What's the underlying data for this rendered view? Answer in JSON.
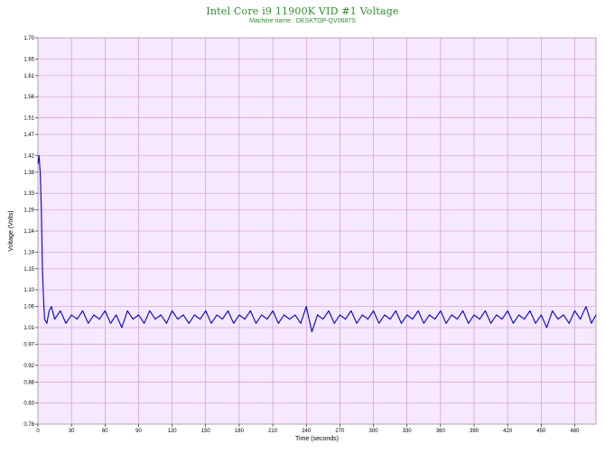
{
  "chart_data": {
    "type": "line",
    "title": "Intel Core i9 11900K VID #1 Voltage",
    "subtitle": "Machine name : DESKTOP-QV0687S",
    "xlabel": "Time (seconds)",
    "ylabel": "Voltage (Volts)",
    "xlim": [
      0,
      499
    ],
    "ylim": [
      0.78,
      1.7
    ],
    "x_ticks": [
      0,
      30,
      60,
      90,
      120,
      150,
      180,
      210,
      240,
      270,
      300,
      330,
      360,
      390,
      420,
      450,
      480
    ],
    "y_ticks": [
      "0.78",
      "0.83",
      "0.88",
      "0.92",
      "0.97",
      "1.01",
      "1.06",
      "1.10",
      "1.15",
      "1.19",
      "1.24",
      "1.29",
      "1.33",
      "1.38",
      "1.42",
      "1.47",
      "1.51",
      "1.56",
      "1.61",
      "1.65",
      "1.70"
    ],
    "grid": true,
    "series": [
      {
        "color": "#0000c0",
        "x": [
          0,
          1,
          2,
          3,
          4,
          5,
          6,
          8,
          10,
          12,
          15,
          20,
          25,
          30,
          35,
          40,
          45,
          50,
          55,
          60,
          65,
          70,
          75,
          80,
          85,
          90,
          95,
          100,
          105,
          110,
          115,
          120,
          125,
          130,
          135,
          140,
          145,
          150,
          155,
          160,
          165,
          170,
          175,
          180,
          185,
          190,
          195,
          200,
          205,
          210,
          215,
          220,
          225,
          230,
          235,
          240,
          245,
          250,
          255,
          260,
          265,
          270,
          275,
          280,
          285,
          290,
          295,
          300,
          305,
          310,
          315,
          320,
          325,
          330,
          335,
          340,
          345,
          350,
          355,
          360,
          365,
          370,
          375,
          380,
          385,
          390,
          395,
          400,
          405,
          410,
          415,
          420,
          425,
          430,
          435,
          440,
          445,
          450,
          455,
          460,
          465,
          470,
          475,
          480,
          485,
          490,
          495,
          499
        ],
        "y": [
          1.4,
          1.42,
          1.38,
          1.3,
          1.15,
          1.08,
          1.03,
          1.02,
          1.05,
          1.06,
          1.03,
          1.05,
          1.02,
          1.04,
          1.03,
          1.05,
          1.02,
          1.04,
          1.03,
          1.05,
          1.02,
          1.04,
          1.01,
          1.05,
          1.03,
          1.04,
          1.02,
          1.05,
          1.03,
          1.04,
          1.02,
          1.05,
          1.03,
          1.04,
          1.02,
          1.04,
          1.03,
          1.05,
          1.02,
          1.04,
          1.03,
          1.05,
          1.02,
          1.04,
          1.03,
          1.05,
          1.02,
          1.04,
          1.03,
          1.05,
          1.02,
          1.04,
          1.03,
          1.04,
          1.02,
          1.06,
          1.0,
          1.04,
          1.03,
          1.05,
          1.02,
          1.04,
          1.03,
          1.05,
          1.02,
          1.04,
          1.03,
          1.05,
          1.02,
          1.04,
          1.03,
          1.05,
          1.02,
          1.04,
          1.03,
          1.05,
          1.02,
          1.04,
          1.03,
          1.05,
          1.02,
          1.04,
          1.03,
          1.05,
          1.02,
          1.04,
          1.03,
          1.05,
          1.02,
          1.04,
          1.03,
          1.05,
          1.02,
          1.04,
          1.03,
          1.05,
          1.02,
          1.04,
          1.01,
          1.05,
          1.03,
          1.04,
          1.02,
          1.05,
          1.03,
          1.06,
          1.02,
          1.04
        ]
      }
    ]
  }
}
